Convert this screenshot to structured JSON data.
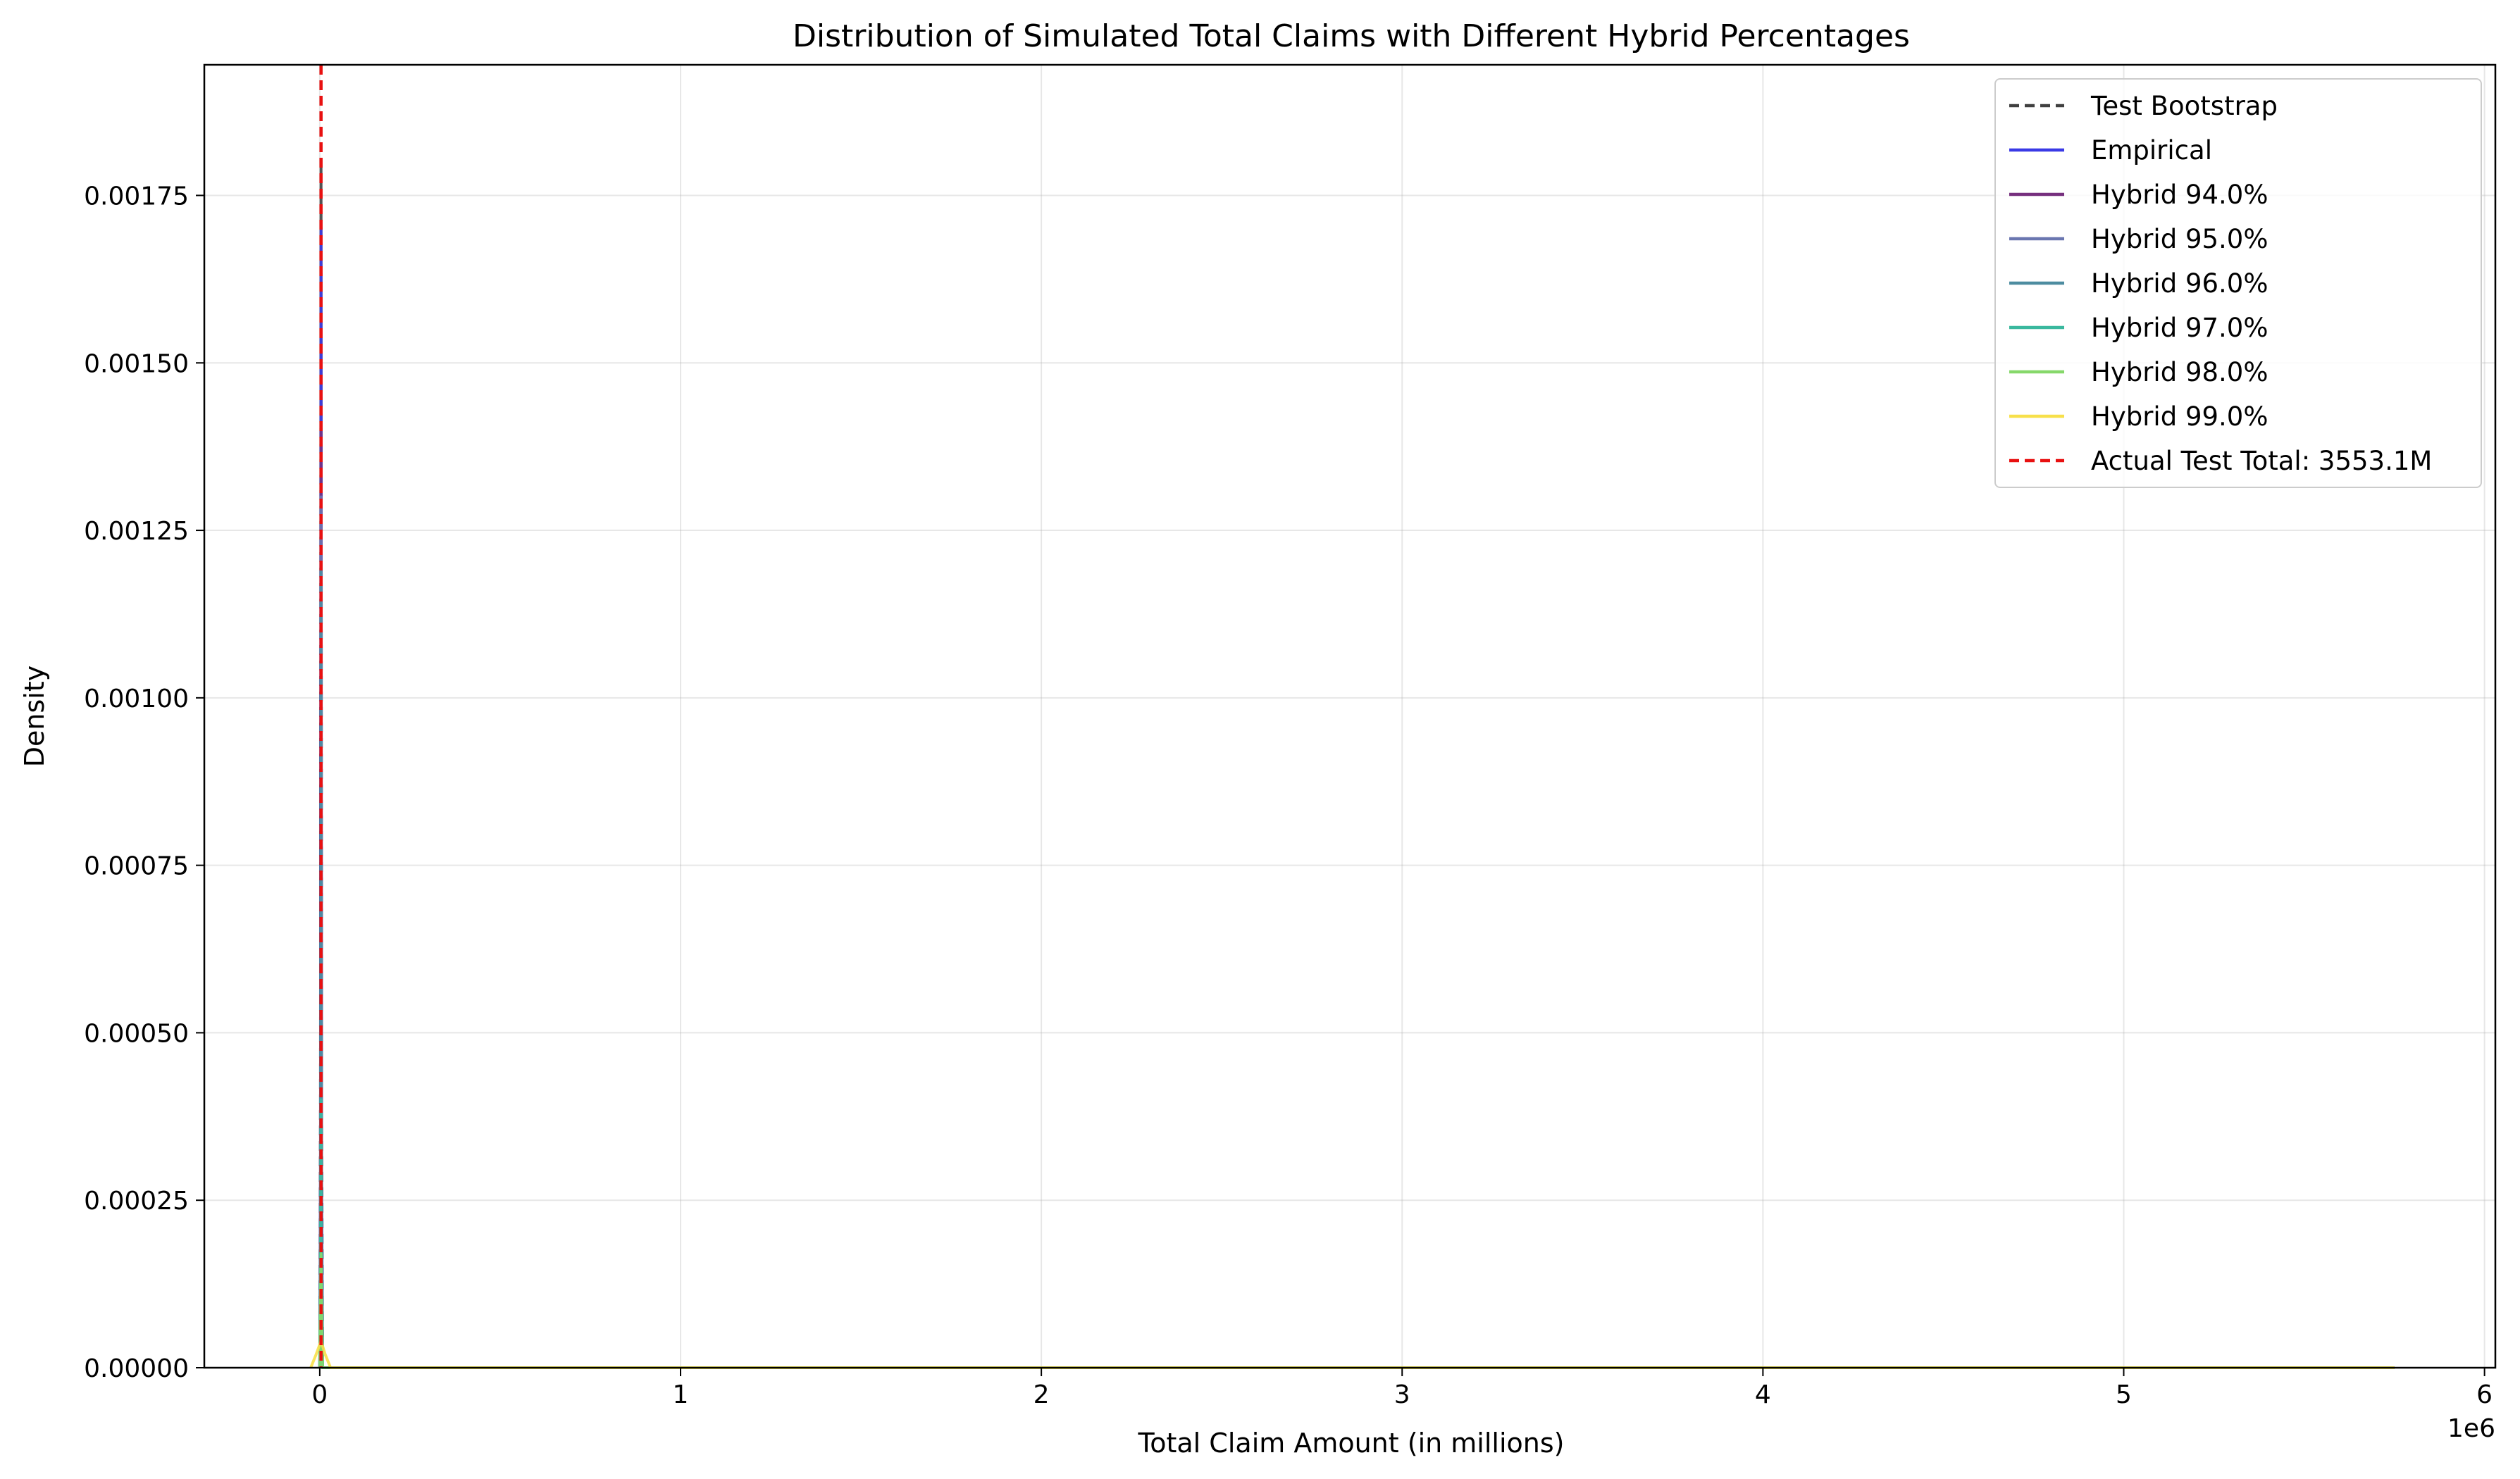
{
  "chart_data": {
    "type": "line",
    "title": "Distribution of Simulated Total Claims with Different Hybrid Percentages",
    "xlabel": "Total Claim Amount (in millions)",
    "ylabel": "Density",
    "x_offset_label": "1e6",
    "xlim": [
      -320000,
      6030000
    ],
    "ylim": [
      0,
      0.001945
    ],
    "x_ticks": [
      0,
      1000000,
      2000000,
      3000000,
      4000000,
      5000000,
      6000000
    ],
    "x_tick_labels": [
      "0",
      "1",
      "2",
      "3",
      "4",
      "5",
      "6"
    ],
    "y_ticks": [
      0,
      0.00025,
      0.0005,
      0.00075,
      0.001,
      0.00125,
      0.0015,
      0.00175
    ],
    "y_tick_labels": [
      "0.00000",
      "0.00025",
      "0.00050",
      "0.00075",
      "0.00100",
      "0.00125",
      "0.00150",
      "0.00175"
    ],
    "grid": true,
    "legend_position": "top-right",
    "series": [
      {
        "name": "Test Bootstrap",
        "color": "#404040",
        "dash": true,
        "x": [
          0,
          2000,
          3553,
          5000,
          8000,
          5750000
        ],
        "y": [
          0,
          0.0004,
          0.0018,
          0.0004,
          0,
          0
        ]
      },
      {
        "name": "Empirical",
        "color": "#3a3ae6",
        "dash": false,
        "x": [
          0,
          2000,
          3553,
          5000,
          8000,
          5750000
        ],
        "y": [
          0,
          0.0003,
          0.0017,
          0.0003,
          0,
          0
        ]
      },
      {
        "name": "Hybrid 94.0%",
        "color": "#76307e",
        "dash": false,
        "x": [
          0,
          2000,
          3553,
          5000,
          8000,
          5750000
        ],
        "y": [
          0,
          0.0002,
          0.0014,
          0.0002,
          0,
          0
        ]
      },
      {
        "name": "Hybrid 95.0%",
        "color": "#6a76b0",
        "dash": false,
        "x": [
          0,
          2000,
          3553,
          5000,
          8000,
          5750000
        ],
        "y": [
          0,
          0.0002,
          0.0013,
          0.0002,
          0,
          0
        ]
      },
      {
        "name": "Hybrid 96.0%",
        "color": "#4d8ca0",
        "dash": false,
        "x": [
          0,
          2000,
          3553,
          5000,
          8000,
          5750000
        ],
        "y": [
          0,
          0.0002,
          0.0012,
          0.0002,
          0,
          0
        ]
      },
      {
        "name": "Hybrid 97.0%",
        "color": "#3ab89e",
        "dash": false,
        "x": [
          0,
          2000,
          3553,
          5000,
          8000,
          5750000
        ],
        "y": [
          0,
          0.00015,
          0.0004,
          0.00015,
          0,
          0
        ]
      },
      {
        "name": "Hybrid 98.0%",
        "color": "#86d86a",
        "dash": false,
        "x": [
          0,
          2000,
          3553,
          5000,
          8000,
          5750000
        ],
        "y": [
          0,
          0.0001,
          0.00017,
          0.0001,
          0,
          0
        ]
      },
      {
        "name": "Hybrid 99.0%",
        "color": "#f7e04a",
        "dash": false,
        "x": [
          -25000,
          -10000,
          3553,
          15000,
          30000,
          5750000
        ],
        "y": [
          0,
          2e-05,
          4e-05,
          2e-05,
          0,
          0
        ]
      }
    ],
    "reference_line": {
      "name": "Actual Test Total: 3553.1M",
      "x": 3553.1,
      "color": "#e81010",
      "dash": true
    }
  }
}
